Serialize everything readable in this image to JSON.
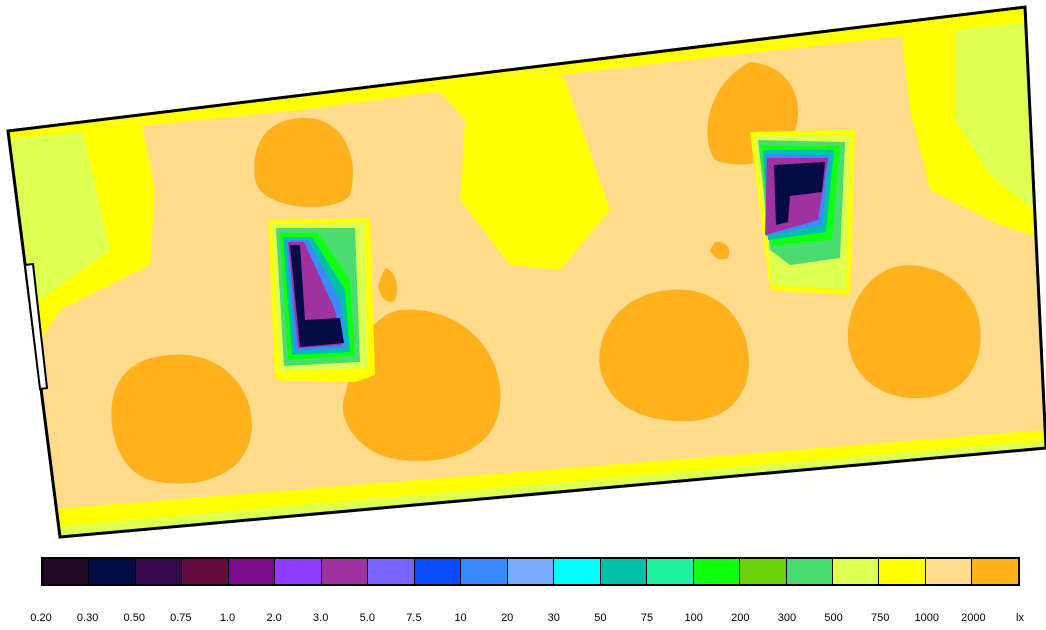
{
  "legend": {
    "colors": [
      "#200a25",
      "#050a45",
      "#360a4a",
      "#630a3d",
      "#7a0a8c",
      "#8a3dff",
      "#a0329f",
      "#7b63ff",
      "#0a4bff",
      "#3a8aff",
      "#78aaff",
      "#00ffff",
      "#00c0a8",
      "#20f0a0",
      "#10ff10",
      "#6ad20a",
      "#4bdc70",
      "#dcff50",
      "#ffff00",
      "#ffdc8c",
      "#ffb21e"
    ],
    "labels": [
      "0.20",
      "0.30",
      "0.50",
      "0.75",
      "1.0",
      "2.0",
      "3.0",
      "5.0",
      "7.5",
      "10",
      "20",
      "30",
      "50",
      "75",
      "100",
      "200",
      "300",
      "500",
      "750",
      "1000",
      "2000"
    ],
    "unit": "lx"
  }
}
